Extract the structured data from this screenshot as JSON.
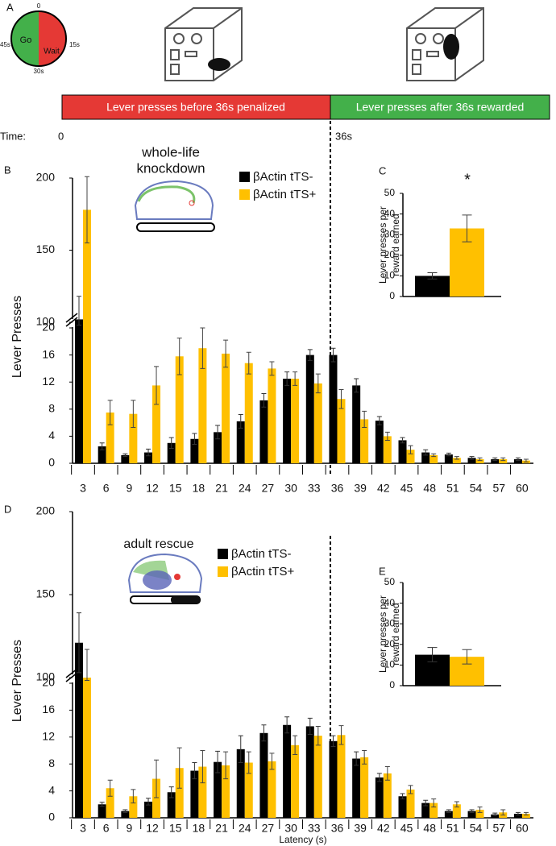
{
  "panel_labels": [
    "A",
    "B",
    "C",
    "D",
    "E"
  ],
  "schematic": {
    "clock": {
      "ticks": [
        "0",
        "15s",
        "30s",
        "45s"
      ],
      "go": "Go",
      "wait": "Wait"
    },
    "timeline": {
      "penalized": "Lever presses before 36s penalized",
      "rewarded": "Lever presses after 36s rewarded",
      "time_label": "Time:",
      "start": "0",
      "boundary": "36s"
    }
  },
  "chart_data": [
    {
      "type": "bar",
      "y_label": "Lever Presses",
      "icon_label": [
        "whole-life",
        "knockdown"
      ],
      "categories": [
        "3",
        "6",
        "9",
        "12",
        "15",
        "18",
        "21",
        "24",
        "27",
        "30",
        "33",
        "36",
        "39",
        "42",
        "45",
        "48",
        "51",
        "54",
        "57",
        "60"
      ],
      "series": [
        {
          "name": "βActin tTS-",
          "color": "#000000",
          "values": [
            102,
            2.5,
            1.2,
            1.6,
            3,
            3.6,
            4.6,
            6.2,
            9.3,
            12.5,
            16,
            16,
            11.5,
            6.3,
            3.4,
            1.6,
            1.3,
            0.8,
            0.6,
            0.6
          ],
          "errors": [
            16,
            0.5,
            0.2,
            0.5,
            0.8,
            0.8,
            1,
            1,
            1,
            1,
            0.8,
            1,
            1,
            0.6,
            0.4,
            0.4,
            0.2,
            0.2,
            0.2,
            0.2
          ]
        },
        {
          "name": "βActin tTS+",
          "color": "#ffc000",
          "values": [
            178,
            7.5,
            7.3,
            11.5,
            15.8,
            17,
            16.2,
            14.8,
            14,
            12.5,
            11.8,
            9.5,
            6.5,
            4,
            2,
            1.2,
            0.8,
            0.6,
            0.6,
            0.4
          ],
          "errors": [
            23,
            1.8,
            2,
            2.8,
            2.7,
            3,
            2,
            1.6,
            1,
            1,
            1.4,
            1.4,
            1.2,
            0.6,
            0.6,
            0.2,
            0.2,
            0.2,
            0.2,
            0.2
          ]
        }
      ],
      "ylim": [
        0,
        200
      ],
      "y_break": [
        20,
        100
      ],
      "yticks": [
        0,
        4,
        8,
        12,
        16,
        20,
        100,
        150,
        200
      ]
    },
    {
      "type": "bar",
      "y_label": [
        "Lever presses per",
        "reward earned"
      ],
      "annotation": "*",
      "series": [
        {
          "color": "#000000",
          "values": [
            10
          ],
          "errors": [
            1.5
          ]
        },
        {
          "color": "#ffc000",
          "values": [
            33
          ],
          "errors": [
            6.5
          ]
        }
      ],
      "ylim": [
        0,
        50
      ],
      "yticks": [
        0,
        10,
        20,
        30,
        40,
        50
      ]
    },
    {
      "type": "bar",
      "y_label": "Lever Presses",
      "x_label": "Latency (s)",
      "icon_label": [
        "adult rescue"
      ],
      "categories": [
        "3",
        "6",
        "9",
        "12",
        "15",
        "18",
        "21",
        "24",
        "27",
        "30",
        "33",
        "36",
        "39",
        "42",
        "45",
        "48",
        "51",
        "54",
        "57",
        "60"
      ],
      "series": [
        {
          "name": "βActin tTS-",
          "color": "#000000",
          "values": [
            121,
            2,
            1,
            2.4,
            3.8,
            7,
            8.3,
            10.2,
            12.6,
            13.8,
            13.6,
            11.4,
            8.8,
            6,
            3.2,
            2.2,
            1,
            1,
            0.5,
            0.6
          ],
          "errors": [
            18,
            0.3,
            0.2,
            0.5,
            0.8,
            1.2,
            1.6,
            2,
            1.2,
            1.2,
            1.2,
            0.8,
            1,
            0.6,
            0.4,
            0.4,
            0.2,
            0.2,
            0.2,
            0.2
          ]
        },
        {
          "name": "βActin tTS+",
          "color": "#ffc000",
          "values": [
            100,
            4.4,
            3.2,
            5.8,
            7.4,
            7.6,
            7.8,
            8.2,
            8.4,
            10.8,
            12.2,
            12.3,
            9,
            6.6,
            4.2,
            2.2,
            2,
            1.2,
            0.8,
            0.6
          ],
          "errors": [
            17,
            1.2,
            1,
            2.8,
            3,
            2.4,
            2,
            1.6,
            1.2,
            1.4,
            1.4,
            1.4,
            1,
            1,
            0.6,
            0.6,
            0.4,
            0.4,
            0.4,
            0.2
          ]
        }
      ],
      "ylim": [
        0,
        200
      ],
      "y_break": [
        20,
        100
      ],
      "yticks": [
        0,
        4,
        8,
        12,
        16,
        20,
        100,
        150,
        200
      ]
    },
    {
      "type": "bar",
      "y_label": [
        "Lever presses per",
        "reward earned"
      ],
      "series": [
        {
          "color": "#000000",
          "values": [
            15
          ],
          "errors": [
            3.5
          ]
        },
        {
          "color": "#ffc000",
          "values": [
            14
          ],
          "errors": [
            3.5
          ]
        }
      ],
      "ylim": [
        0,
        50
      ],
      "yticks": [
        0,
        10,
        20,
        30,
        40,
        50
      ]
    }
  ]
}
